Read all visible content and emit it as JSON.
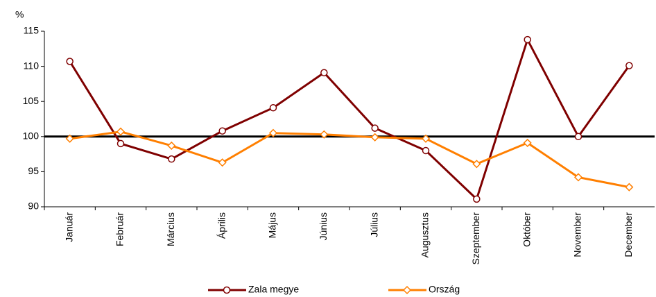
{
  "chart_data": {
    "type": "line",
    "y_label": "%",
    "categories": [
      "Január",
      "Február",
      "Március",
      "Április",
      "Május",
      "Június",
      "Július",
      "Augusztus",
      "Szeptember",
      "Október",
      "November",
      "December"
    ],
    "series": [
      {
        "name": "Zala megye",
        "color": "#7f0000",
        "marker": "circle",
        "values": [
          110.7,
          99.0,
          96.8,
          100.8,
          104.1,
          109.1,
          101.2,
          98.0,
          91.1,
          113.8,
          100.0,
          110.1
        ]
      },
      {
        "name": "Ország",
        "color": "#ff7f00",
        "marker": "diamond",
        "values": [
          99.7,
          100.7,
          98.7,
          96.3,
          100.5,
          100.3,
          99.9,
          99.7,
          96.1,
          99.1,
          94.2,
          92.8
        ]
      }
    ],
    "ylim": [
      90,
      115
    ],
    "yticks": [
      90,
      95,
      100,
      105,
      110,
      115
    ],
    "reference_line": 100,
    "legend": "bottom"
  }
}
